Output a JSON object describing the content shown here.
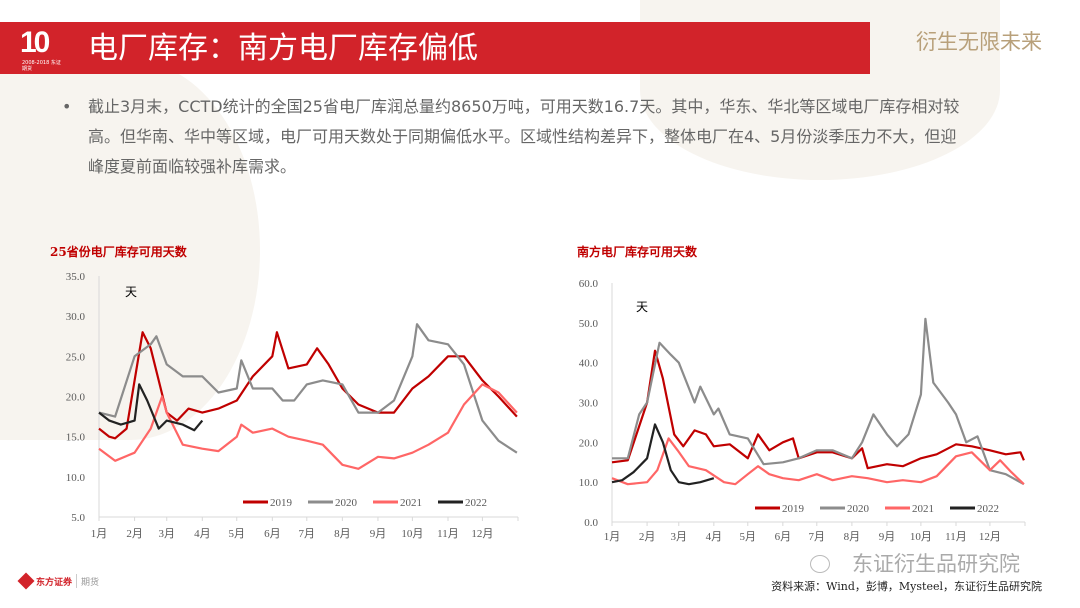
{
  "header": {
    "title": "电厂库存：南方电厂库存偏低",
    "logo_text": "10",
    "logo_sub": "2008-2018 东证期货",
    "slogan": "衍生无限未来",
    "accent": "#d2232a"
  },
  "bullet": {
    "marker": "•",
    "text": "截止3月末，CCTD统计的全国25省电厂库润总量约8650万吨，可用天数16.7天。其中，华东、华北等区域电厂库存相对较高。但华南、华中等区域，电厂可用天数处于同期偏低水平。区域性结构差异下，整体电厂在4、5月份淡季压力不大，但迎峰度夏前面临较强补库需求。"
  },
  "footer": {
    "company": "东方证券",
    "division": "期货",
    "watermark": "东证衍生品研究院",
    "source": "资料来源：Wind，彭博，Mysteel，东证衍生品研究院"
  },
  "chart_data": [
    {
      "type": "line",
      "title": "25省份电厂库存可用天数",
      "ylabel": "天",
      "ylim": [
        5,
        35
      ],
      "yticks": [
        "5.0",
        "10.0",
        "15.0",
        "20.0",
        "25.0",
        "30.0",
        "35.0"
      ],
      "xticks": [
        "1月",
        "2月",
        "3月",
        "4月",
        "5月",
        "6月",
        "7月",
        "8月",
        "9月",
        "10月",
        "11月",
        "12月"
      ],
      "legend": "bottom",
      "series": [
        {
          "name": "2019",
          "color": "#c00000",
          "x": [
            "01-01",
            "01-10",
            "01-15",
            "01-25",
            "02-01",
            "02-08",
            "02-15",
            "02-22",
            "03-01",
            "03-10",
            "03-20",
            "04-01",
            "04-15",
            "05-01",
            "05-15",
            "06-01",
            "06-05",
            "06-15",
            "07-01",
            "07-10",
            "07-20",
            "08-01",
            "08-15",
            "09-01",
            "09-15",
            "10-01",
            "10-15",
            "11-01",
            "11-15",
            "12-01",
            "12-15",
            "12-31"
          ],
          "values": [
            16,
            15,
            14.8,
            16,
            22,
            28,
            26,
            22,
            18,
            17,
            18.5,
            18,
            18.5,
            19.5,
            22.5,
            25,
            28,
            23.5,
            24,
            26,
            24,
            21,
            19,
            18,
            18,
            21,
            22.5,
            25,
            25,
            22,
            20,
            17.5
          ]
        },
        {
          "name": "2020",
          "color": "#8c8c8c",
          "x": [
            "01-01",
            "01-15",
            "02-01",
            "02-15",
            "02-20",
            "03-01",
            "03-15",
            "04-01",
            "04-15",
            "05-01",
            "05-05",
            "05-15",
            "06-01",
            "06-10",
            "06-20",
            "07-01",
            "07-15",
            "08-01",
            "08-15",
            "09-01",
            "09-15",
            "10-01",
            "10-05",
            "10-15",
            "11-01",
            "11-15",
            "12-01",
            "12-15",
            "12-31"
          ],
          "values": [
            18,
            17.5,
            25,
            26.5,
            27.5,
            24,
            22.5,
            22.5,
            20.5,
            21,
            24.5,
            21,
            21,
            19.5,
            19.5,
            21.5,
            22,
            21.5,
            18,
            18,
            19.5,
            25,
            29,
            27,
            26.5,
            24,
            17,
            14.5,
            13
          ]
        },
        {
          "name": "2021",
          "color": "#ff6666",
          "x": [
            "01-01",
            "01-15",
            "02-01",
            "02-15",
            "02-25",
            "03-01",
            "03-15",
            "04-01",
            "04-15",
            "05-01",
            "05-05",
            "05-15",
            "06-01",
            "06-15",
            "07-01",
            "07-15",
            "08-01",
            "08-15",
            "09-01",
            "09-15",
            "10-01",
            "10-15",
            "11-01",
            "11-15",
            "12-01",
            "12-15",
            "12-31"
          ],
          "values": [
            13.5,
            12,
            13,
            16,
            20,
            18,
            14,
            13.5,
            13.2,
            15,
            16.5,
            15.5,
            16,
            15,
            14.5,
            14,
            11.5,
            11,
            12.5,
            12.3,
            13,
            14,
            15.5,
            19,
            21.5,
            20.5,
            18
          ]
        },
        {
          "name": "2022",
          "color": "#222222",
          "x": [
            "01-01",
            "01-10",
            "01-20",
            "02-01",
            "02-05",
            "02-12",
            "02-22",
            "03-01",
            "03-15",
            "03-25",
            "04-01"
          ],
          "values": [
            18,
            17,
            16.5,
            17,
            21.5,
            19.5,
            16,
            17,
            16.5,
            15.8,
            17
          ]
        }
      ]
    },
    {
      "type": "line",
      "title": "南方电厂库存可用天数",
      "ylabel": "天",
      "ylim": [
        0,
        60
      ],
      "yticks": [
        "0.0",
        "10.0",
        "20.0",
        "30.0",
        "40.0",
        "50.0",
        "60.0"
      ],
      "xticks": [
        "1月",
        "2月",
        "3月",
        "4月",
        "5月",
        "6月",
        "7月",
        "8月",
        "9月",
        "10月",
        "11月",
        "12月"
      ],
      "legend": "bottom",
      "series": [
        {
          "name": "2019",
          "color": "#c00000",
          "x": [
            "01-01",
            "01-15",
            "02-01",
            "02-08",
            "02-15",
            "02-25",
            "03-05",
            "03-15",
            "03-25",
            "04-01",
            "04-15",
            "05-01",
            "05-10",
            "05-20",
            "06-01",
            "06-10",
            "06-15",
            "07-01",
            "07-15",
            "08-01",
            "08-10",
            "08-15",
            "09-01",
            "09-15",
            "10-01",
            "10-15",
            "11-01",
            "11-15",
            "12-01",
            "12-15",
            "12-28",
            "12-31"
          ],
          "values": [
            15,
            15.5,
            30,
            43,
            36,
            22,
            19,
            23,
            22,
            19,
            19.5,
            16,
            22,
            18,
            20,
            21,
            16,
            17.5,
            17.5,
            16,
            18.5,
            13.5,
            14.5,
            14,
            16,
            17,
            19.5,
            19,
            18,
            17,
            17.5,
            15.5
          ]
        },
        {
          "name": "2020",
          "color": "#8c8c8c",
          "x": [
            "01-01",
            "01-15",
            "01-25",
            "02-01",
            "02-12",
            "02-22",
            "03-01",
            "03-15",
            "03-20",
            "04-01",
            "04-05",
            "04-15",
            "05-01",
            "05-15",
            "06-01",
            "06-15",
            "07-01",
            "07-15",
            "08-01",
            "08-10",
            "08-20",
            "09-01",
            "09-10",
            "09-20",
            "10-01",
            "10-05",
            "10-12",
            "10-25",
            "11-01",
            "11-10",
            "11-20",
            "12-01",
            "12-15",
            "12-31"
          ],
          "values": [
            16,
            16,
            27,
            30,
            45,
            42,
            40,
            30,
            34,
            27,
            28.5,
            22,
            21,
            14.5,
            15,
            16,
            18,
            18,
            16,
            20,
            27,
            22,
            19,
            22,
            32,
            51,
            35,
            30,
            27,
            20,
            21.5,
            13,
            12,
            9.5
          ]
        },
        {
          "name": "2021",
          "color": "#ff6666",
          "x": [
            "01-01",
            "01-15",
            "02-01",
            "02-10",
            "02-20",
            "02-28",
            "03-10",
            "03-25",
            "04-10",
            "04-20",
            "05-01",
            "05-10",
            "05-20",
            "06-01",
            "06-15",
            "07-01",
            "07-15",
            "08-01",
            "08-15",
            "09-01",
            "09-15",
            "10-01",
            "10-15",
            "11-01",
            "11-15",
            "12-01",
            "12-10",
            "12-20",
            "12-31"
          ],
          "values": [
            11,
            9.5,
            10,
            13,
            21,
            18,
            14,
            13,
            10,
            9.5,
            12,
            14,
            12,
            11,
            10.5,
            12,
            10.5,
            11.5,
            11,
            10,
            10.5,
            10,
            11.5,
            16.5,
            17.5,
            13,
            15.5,
            12.5,
            9.5
          ]
        },
        {
          "name": "2022",
          "color": "#222222",
          "x": [
            "01-01",
            "01-10",
            "01-20",
            "02-01",
            "02-08",
            "02-15",
            "02-22",
            "03-01",
            "03-10",
            "03-20",
            "04-01"
          ],
          "values": [
            10,
            10.5,
            12.5,
            16,
            24.5,
            20,
            13,
            10,
            9.5,
            10,
            11
          ]
        }
      ]
    }
  ]
}
